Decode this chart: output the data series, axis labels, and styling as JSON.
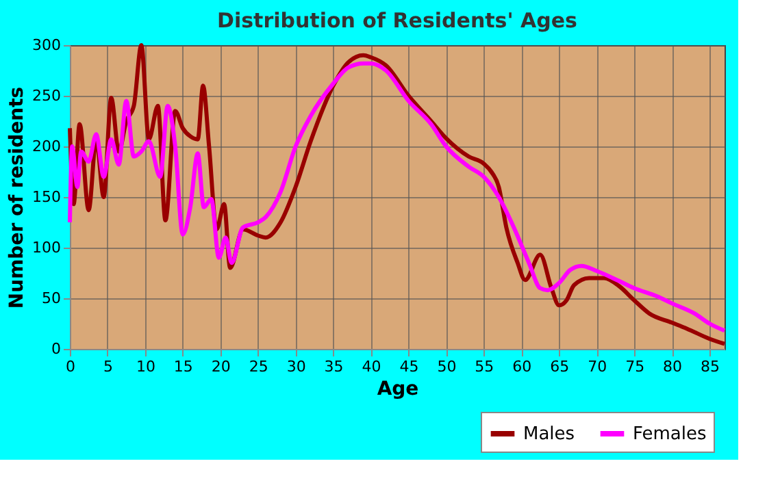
{
  "chart_data": {
    "type": "line",
    "title": "Distribution of Residents' Ages",
    "xlabel": "Age",
    "ylabel": "Number of residents",
    "xlim": [
      0,
      87
    ],
    "xticks": [
      0,
      5,
      10,
      15,
      20,
      25,
      30,
      35,
      40,
      45,
      50,
      55,
      60,
      65,
      70,
      75,
      80,
      85
    ],
    "ylim": [
      0,
      300
    ],
    "yticks": [
      0,
      50,
      100,
      150,
      200,
      250,
      300
    ],
    "grid": true,
    "legend": "bottom right",
    "marker": "none",
    "line_style": "solid",
    "series": [
      {
        "name": "Males",
        "color": "#990000",
        "x": [
          0,
          0.5,
          1.3,
          2.5,
          3.5,
          4.5,
          5.5,
          6.5,
          7.5,
          8.5,
          9.5,
          10.5,
          11.7,
          12.7,
          14,
          15,
          16,
          17,
          17.7,
          18.5,
          19.5,
          20.5,
          21.3,
          23,
          25,
          26,
          28,
          30,
          32,
          35,
          37,
          39,
          40,
          42,
          45,
          48,
          50,
          53,
          55,
          56,
          57,
          58,
          59.5,
          60.5,
          62.5,
          64,
          65,
          66,
          67,
          69,
          71,
          73,
          75,
          77,
          80,
          82,
          85,
          87
        ],
        "values": [
          218,
          143,
          222,
          137,
          207,
          150,
          248,
          195,
          225,
          240,
          300,
          207,
          240,
          127,
          235,
          218,
          210,
          207,
          260,
          200,
          118,
          143,
          80,
          118,
          112,
          110,
          125,
          160,
          205,
          260,
          283,
          290,
          288,
          280,
          250,
          225,
          208,
          190,
          183,
          175,
          160,
          120,
          85,
          68,
          93,
          60,
          43,
          48,
          63,
          70,
          70,
          62,
          48,
          35,
          26,
          20,
          10,
          5
        ]
      },
      {
        "name": "Females",
        "color": "#ff00ff",
        "x": [
          0,
          0.3,
          1,
          1.5,
          2.5,
          3.5,
          4.5,
          5.5,
          6.5,
          7.5,
          8.5,
          9.5,
          10.5,
          12,
          13,
          14,
          15,
          16,
          17,
          17.8,
          18.8,
          19.8,
          20.7,
          21.5,
          23,
          25,
          26,
          28,
          30,
          32,
          35,
          37,
          39,
          40,
          42,
          45,
          48,
          50,
          53,
          55,
          57,
          59,
          61,
          62.5,
          63.5,
          65,
          66.5,
          68,
          70,
          73,
          75,
          78,
          80,
          83,
          85,
          87
        ],
        "values": [
          125,
          200,
          160,
          195,
          185,
          212,
          170,
          207,
          182,
          245,
          190,
          195,
          205,
          170,
          240,
          200,
          113,
          140,
          193,
          140,
          148,
          90,
          110,
          85,
          120,
          125,
          130,
          155,
          200,
          230,
          262,
          278,
          282,
          282,
          275,
          245,
          222,
          200,
          180,
          170,
          150,
          120,
          85,
          60,
          58,
          65,
          78,
          82,
          77,
          67,
          60,
          52,
          45,
          35,
          25,
          18
        ]
      }
    ]
  }
}
